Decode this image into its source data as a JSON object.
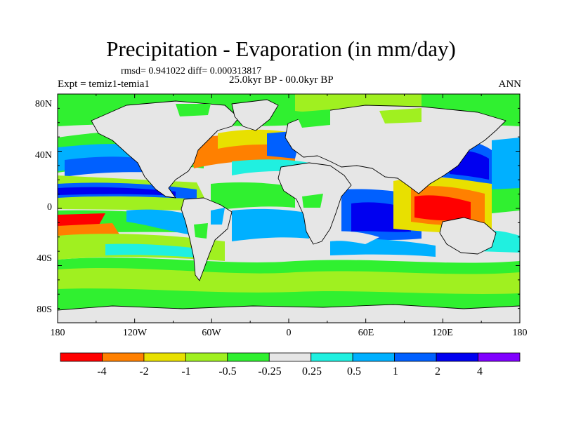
{
  "title": "Precipitation - Evaporation (in mm/day)",
  "stats_line": "rmsd= 0.941022 diff= 0.000313817",
  "period_line": "25.0kyr BP - 00.0kyr BP",
  "experiment_label": "Expt = temiz1-temia1",
  "season_label": "ANN",
  "map": {
    "lat_ticks": [
      "80N",
      "40N",
      "0",
      "40S",
      "80S"
    ],
    "lon_ticks": [
      "180",
      "120W",
      "60W",
      "0",
      "60E",
      "120E",
      "180"
    ],
    "ocean_fill": "#e6e6e6",
    "coastline_color": "#000000"
  },
  "colorbar": {
    "labels": [
      "-4",
      "-2",
      "-1",
      "-0.5",
      "-0.25",
      "0.25",
      "0.5",
      "1",
      "2",
      "4"
    ],
    "colors": [
      "#ff0000",
      "#ff8000",
      "#e8e000",
      "#a0f020",
      "#30f030",
      "#e6e6e6",
      "#20f0e0",
      "#00b0ff",
      "#0060ff",
      "#0000f0",
      "#8000ff"
    ]
  }
}
